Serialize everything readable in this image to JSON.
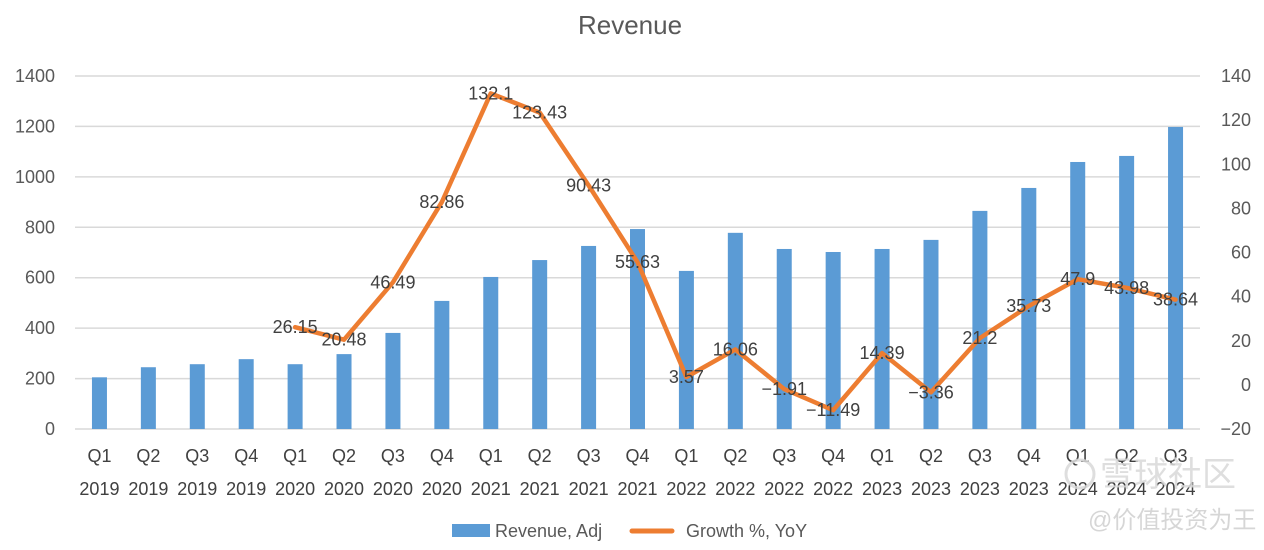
{
  "chart_data": {
    "type": "bar+line",
    "title": "Revenue",
    "categories": [
      [
        "Q1",
        "2019"
      ],
      [
        "Q2",
        "2019"
      ],
      [
        "Q3",
        "2019"
      ],
      [
        "Q4",
        "2019"
      ],
      [
        "Q1",
        "2020"
      ],
      [
        "Q2",
        "2020"
      ],
      [
        "Q3",
        "2020"
      ],
      [
        "Q4",
        "2020"
      ],
      [
        "Q1",
        "2021"
      ],
      [
        "Q2",
        "2021"
      ],
      [
        "Q3",
        "2021"
      ],
      [
        "Q4",
        "2021"
      ],
      [
        "Q1",
        "2022"
      ],
      [
        "Q2",
        "2022"
      ],
      [
        "Q3",
        "2022"
      ],
      [
        "Q4",
        "2022"
      ],
      [
        "Q1",
        "2023"
      ],
      [
        "Q2",
        "2023"
      ],
      [
        "Q3",
        "2023"
      ],
      [
        "Q4",
        "2023"
      ],
      [
        "Q1",
        "2024"
      ],
      [
        "Q2",
        "2024"
      ],
      [
        "Q3",
        "2024"
      ]
    ],
    "series": [
      {
        "name": "Revenue, Adj",
        "type": "bar",
        "axis": "left",
        "color": "#5B9BD5",
        "values": [
          205,
          245,
          257,
          277,
          257,
          297,
          381,
          508,
          603,
          670,
          726,
          793,
          627,
          778,
          714,
          702,
          714,
          750,
          865,
          956,
          1059,
          1083,
          1198
        ]
      },
      {
        "name": "Growth %, YoY",
        "type": "line",
        "axis": "right",
        "color": "#ED7D31",
        "values": [
          null,
          null,
          null,
          null,
          26.15,
          20.48,
          46.49,
          82.86,
          132.1,
          123.43,
          90.43,
          55.63,
          3.57,
          16.06,
          -1.91,
          -11.49,
          14.39,
          -3.36,
          21.2,
          35.73,
          47.9,
          43.98,
          38.64
        ],
        "labels": [
          null,
          null,
          null,
          null,
          "26.15",
          "20.48",
          "46.49",
          "82.86",
          "132.1",
          "123.43",
          "90.43",
          "55.63",
          "3.57",
          "16.06",
          "−1.91",
          "−11.49",
          "14.39",
          "−3.36",
          "21.2",
          "35.73",
          "47.9",
          "43.98",
          "38.64"
        ]
      }
    ],
    "y_left": {
      "range": [
        0,
        1400
      ],
      "ticks": [
        "0",
        "200",
        "400",
        "600",
        "800",
        "1000",
        "1200",
        "1400"
      ]
    },
    "y_right": {
      "range": [
        -20,
        140
      ],
      "ticks": [
        "−20",
        "0",
        "20",
        "40",
        "60",
        "80",
        "100",
        "120",
        "140"
      ]
    },
    "grid": true,
    "legend": {
      "position": "bottom",
      "items": [
        "Revenue, Adj",
        "Growth %, YoY"
      ]
    },
    "gridline_color": "#D9D9D9"
  },
  "watermark": {
    "brand": "雪球社区",
    "author": "@价值投资为王"
  }
}
